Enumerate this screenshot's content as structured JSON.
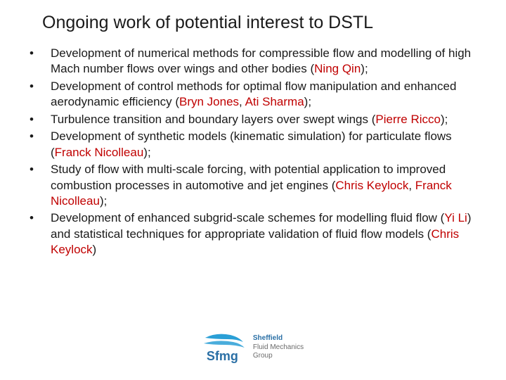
{
  "title": "Ongoing work of potential interest to DSTL",
  "text_color": "#1a1a1a",
  "name_color": "#c00000",
  "bullets": [
    {
      "pre": "Development of numerical methods for compressible flow and modelling of high Mach number flows over wings and other bodies (",
      "names": [
        "Ning Qin"
      ],
      "join": "",
      "post": ");"
    },
    {
      "pre": "Development of control methods for optimal flow manipulation and enhanced aerodynamic efficiency (",
      "names": [
        "Bryn Jones",
        "Ati Sharma"
      ],
      "join": ", ",
      "post": ");"
    },
    {
      "pre": "Turbulence transition and boundary layers over swept wings (",
      "names": [
        "Pierre Ricco"
      ],
      "join": "",
      "post": ");"
    },
    {
      "pre": "Development of synthetic models (kinematic simulation) for particulate flows (",
      "names": [
        "Franck Nicolleau"
      ],
      "join": "",
      "post": ");"
    },
    {
      "pre": "Study of flow with multi-scale forcing, with potential application to improved combustion processes in automotive and jet engines (",
      "names": [
        "Chris Keylock",
        "Franck Nicolleau"
      ],
      "join": ", ",
      "post": ");"
    },
    {
      "pre": "Development of enhanced subgrid-scale schemes for modelling fluid flow (",
      "names": [
        "Yi Li"
      ],
      "join": "",
      "mid": ") and statistical techniques for appropriate validation of fluid flow models (",
      "names2": [
        "Chris Keylock"
      ],
      "post": ")"
    }
  ],
  "logo": {
    "line1": "Sheffield",
    "line2": "Fluid Mechanics",
    "line3": "Group",
    "abbrev": "Sfmg",
    "swoosh_color": "#2a9fd6",
    "text_color": "#2a6fa5",
    "sub_color": "#6b6b6b"
  }
}
